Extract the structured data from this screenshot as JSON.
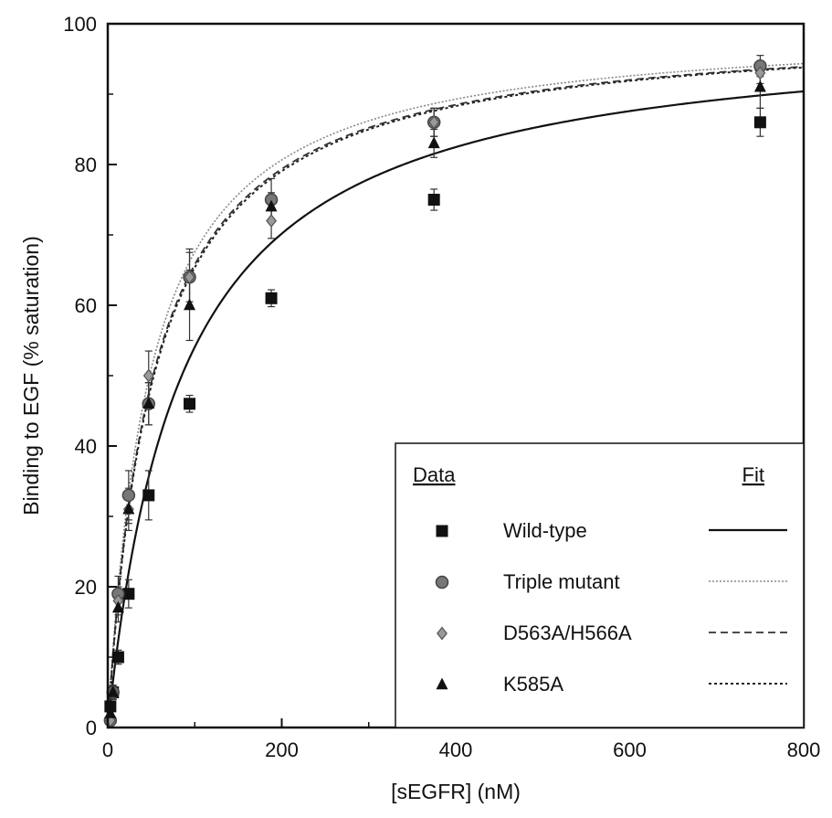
{
  "chart_data": {
    "type": "scatter",
    "xlabel": "[sEGFR] (nM)",
    "ylabel": "Binding to EGF (% saturation)",
    "xlim": [
      0,
      800
    ],
    "ylim": [
      0,
      100
    ],
    "x_ticks": [
      "0",
      "200",
      "400",
      "600",
      "800"
    ],
    "y_ticks": [
      "0",
      "20",
      "40",
      "60",
      "80",
      "100"
    ],
    "legend": {
      "placement": "bottom-right",
      "data_header": "Data",
      "fit_header": "Fit"
    },
    "series": [
      {
        "name": "Wild-type",
        "marker": "square",
        "line_style": "solid",
        "color": "#111111",
        "x": [
          3,
          6,
          12,
          24,
          47,
          94,
          188,
          375,
          750
        ],
        "y": [
          3,
          5,
          10,
          19,
          33,
          46,
          61,
          75,
          86
        ],
        "err": [
          0.5,
          0.8,
          1,
          2,
          3.5,
          1.2,
          1.2,
          1.5,
          2
        ],
        "fit_bmax": 100,
        "fit_kd": 85
      },
      {
        "name": "Triple mutant",
        "marker": "circle",
        "line_style": "dotted-light",
        "color": "#555555",
        "x": [
          3,
          6,
          12,
          24,
          47,
          94,
          188,
          375,
          750
        ],
        "y": [
          1,
          5,
          19,
          33,
          46,
          64,
          75,
          86,
          94
        ],
        "err": [
          0.5,
          1,
          2.5,
          3.5,
          3,
          3.5,
          3,
          2,
          1.5
        ],
        "fit_bmax": 100,
        "fit_kd": 48
      },
      {
        "name": "D563A/H566A",
        "marker": "diamond",
        "line_style": "dashed",
        "color": "#555555",
        "x": [
          3,
          6,
          12,
          24,
          47,
          94,
          188,
          375,
          750
        ],
        "y": [
          1,
          5,
          18,
          31,
          50,
          64,
          72,
          86,
          93
        ],
        "err": [
          0.5,
          1,
          2,
          3,
          3.5,
          4,
          2.5,
          2,
          1.5
        ],
        "fit_bmax": 100,
        "fit_kd": 52
      },
      {
        "name": "K585A",
        "marker": "triangle",
        "line_style": "dotted",
        "color": "#111111",
        "x": [
          3,
          6,
          12,
          24,
          47,
          94,
          188,
          375,
          750
        ],
        "y": [
          2,
          5,
          17,
          31,
          46,
          60,
          74,
          83,
          91
        ],
        "err": [
          0.5,
          1,
          2,
          2,
          3,
          5,
          2,
          2,
          3
        ],
        "fit_bmax": 100,
        "fit_kd": 53
      }
    ]
  }
}
